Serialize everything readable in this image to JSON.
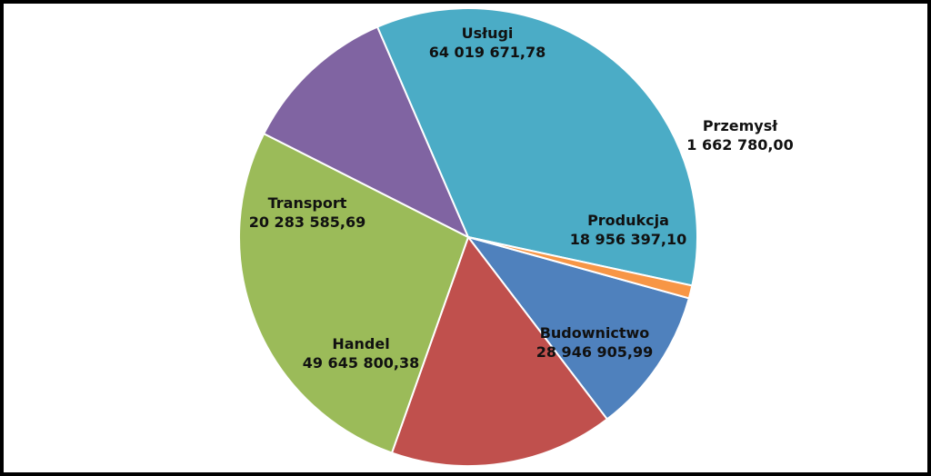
{
  "chart_data": {
    "type": "pie",
    "title": "",
    "slices": [
      {
        "name": "Produkcja",
        "value": 18956397.1,
        "value_label": "18 956 397,10",
        "color": "#4F81BD"
      },
      {
        "name": "Budownictwo",
        "value": 28946905.99,
        "value_label": "28 946 905,99",
        "color": "#C0504D"
      },
      {
        "name": "Handel",
        "value": 49645800.38,
        "value_label": "49 645 800,38",
        "color": "#9BBB59"
      },
      {
        "name": "Transport",
        "value": 20283585.69,
        "value_label": "20 283 585,69",
        "color": "#8064A2"
      },
      {
        "name": "Usługi",
        "value": 64019671.78,
        "value_label": "64 019 671,78",
        "color": "#4BACC6"
      },
      {
        "name": "Przemysł",
        "value": 1662780.0,
        "value_label": "1 662 780,00",
        "color": "#F79646"
      }
    ],
    "legend": "none",
    "data_labels": "name and value"
  }
}
